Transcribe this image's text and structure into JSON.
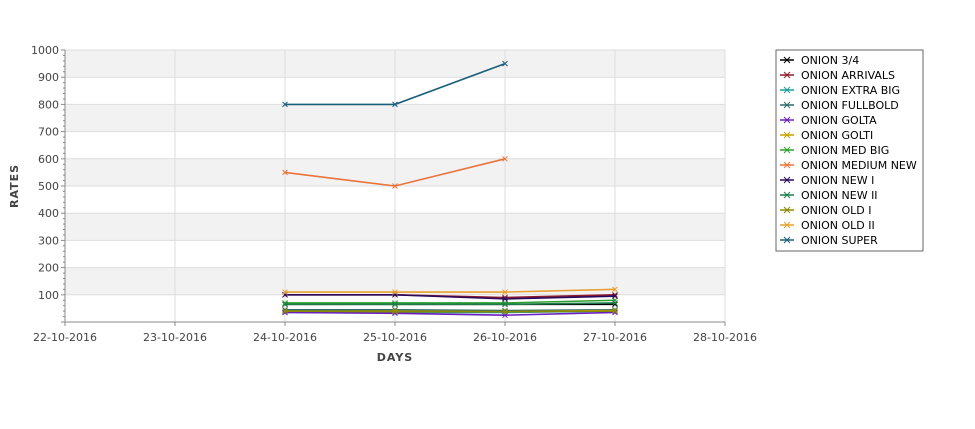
{
  "chart_data": {
    "type": "line",
    "xlabel": "DAYS",
    "ylabel": "RATES",
    "x_ticks": [
      "22-10-2016",
      "23-10-2016",
      "24-10-2016",
      "25-10-2016",
      "26-10-2016",
      "27-10-2016",
      "28-10-2016"
    ],
    "y_ticks": [
      100,
      200,
      300,
      400,
      500,
      600,
      700,
      800,
      900,
      1000
    ],
    "ylim": [
      0,
      1000
    ],
    "grid": true,
    "legend_position": "right",
    "series": [
      {
        "name": "ONION 3/4",
        "color": "#000000",
        "points": [
          [
            "24-10-2016",
            65
          ],
          [
            "25-10-2016",
            65
          ],
          [
            "26-10-2016",
            65
          ],
          [
            "27-10-2016",
            65
          ]
        ]
      },
      {
        "name": "ONION ARRIVALS",
        "color": "#8b1a2b",
        "points": [
          [
            "24-10-2016",
            100
          ],
          [
            "25-10-2016",
            100
          ],
          [
            "26-10-2016",
            90
          ],
          [
            "27-10-2016",
            100
          ]
        ]
      },
      {
        "name": "ONION EXTRA BIG",
        "color": "#1e9a9a",
        "points": [
          [
            "24-10-2016",
            35
          ],
          [
            "25-10-2016",
            35
          ],
          [
            "26-10-2016",
            35
          ],
          [
            "27-10-2016",
            40
          ]
        ]
      },
      {
        "name": "ONION FULLBOLD",
        "color": "#2e6b6b",
        "points": [
          [
            "24-10-2016",
            45
          ],
          [
            "25-10-2016",
            45
          ],
          [
            "26-10-2016",
            42
          ],
          [
            "27-10-2016",
            45
          ]
        ]
      },
      {
        "name": "ONION GOLTA",
        "color": "#6a1fc0",
        "points": [
          [
            "24-10-2016",
            35
          ],
          [
            "25-10-2016",
            32
          ],
          [
            "26-10-2016",
            25
          ],
          [
            "27-10-2016",
            35
          ]
        ]
      },
      {
        "name": "ONION GOLTI",
        "color": "#c8a000",
        "points": [
          [
            "24-10-2016",
            40
          ],
          [
            "25-10-2016",
            40
          ],
          [
            "26-10-2016",
            38
          ],
          [
            "27-10-2016",
            42
          ]
        ]
      },
      {
        "name": "ONION MED BIG",
        "color": "#2ea02e",
        "points": [
          [
            "24-10-2016",
            70
          ],
          [
            "25-10-2016",
            70
          ],
          [
            "26-10-2016",
            70
          ],
          [
            "27-10-2016",
            80
          ]
        ]
      },
      {
        "name": "ONION MEDIUM NEW",
        "color": "#e8743b",
        "points": [
          [
            "24-10-2016",
            550
          ],
          [
            "25-10-2016",
            500
          ],
          [
            "26-10-2016",
            600
          ]
        ]
      },
      {
        "name": "ONION NEW I",
        "color": "#2b0a5c",
        "points": [
          [
            "24-10-2016",
            100
          ],
          [
            "25-10-2016",
            100
          ],
          [
            "26-10-2016",
            85
          ],
          [
            "27-10-2016",
            95
          ]
        ]
      },
      {
        "name": "ONION NEW II",
        "color": "#1f7a4a",
        "points": [
          [
            "24-10-2016",
            65
          ],
          [
            "25-10-2016",
            65
          ],
          [
            "26-10-2016",
            65
          ],
          [
            "27-10-2016",
            70
          ]
        ]
      },
      {
        "name": "ONION OLD I",
        "color": "#8a8a00",
        "points": [
          [
            "24-10-2016",
            40
          ],
          [
            "25-10-2016",
            38
          ],
          [
            "26-10-2016",
            38
          ],
          [
            "27-10-2016",
            40
          ]
        ]
      },
      {
        "name": "ONION OLD II",
        "color": "#e8a030",
        "points": [
          [
            "24-10-2016",
            110
          ],
          [
            "25-10-2016",
            110
          ],
          [
            "26-10-2016",
            110
          ],
          [
            "27-10-2016",
            120
          ]
        ]
      },
      {
        "name": "ONION SUPER",
        "color": "#1a5f7a",
        "points": [
          [
            "24-10-2016",
            800
          ],
          [
            "25-10-2016",
            800
          ],
          [
            "26-10-2016",
            950
          ]
        ]
      }
    ]
  }
}
